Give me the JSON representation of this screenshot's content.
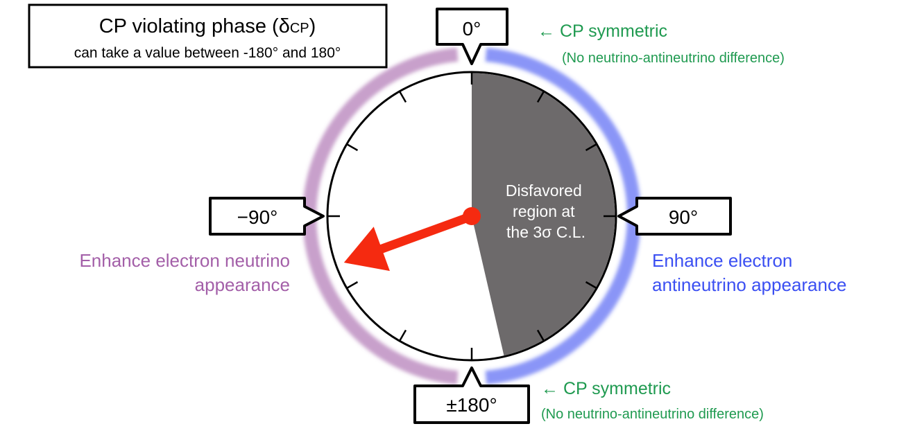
{
  "title_box": {
    "title_main": "CP violating phase (δ",
    "title_sub": "CP",
    "title_close": ")",
    "subtitle": "can take a value  between -180° and 180°"
  },
  "dial": {
    "label_top": "0°",
    "label_right": "90°",
    "label_bottom": "±180°",
    "label_left": "−90°",
    "disfavored_lines": [
      "Disfavored",
      "region at",
      "the 3σ C.L."
    ],
    "disfavored_range_deg": [
      0,
      167
    ],
    "arrow_angle_deg": -110,
    "tick_step_deg": 30
  },
  "annotations": {
    "top_cp_symmetric": "← CP symmetric",
    "top_no_difference": "(No neutrino-antineutrino  difference)",
    "bottom_cp_symmetric": "← CP symmetric",
    "bottom_no_difference": "(No neutrino-antineutrino  difference)",
    "left_enhance_line1": "Enhance electron neutrino",
    "left_enhance_line2": "appearance",
    "right_enhance_line1": "Enhance electron",
    "right_enhance_line2": "antineutrino appearance"
  },
  "colors": {
    "purple": "#a35fa8",
    "blue": "#3b4ff2",
    "green": "#1f9a50",
    "shade": "#6d6a6b",
    "arrow": "#f52a10"
  }
}
